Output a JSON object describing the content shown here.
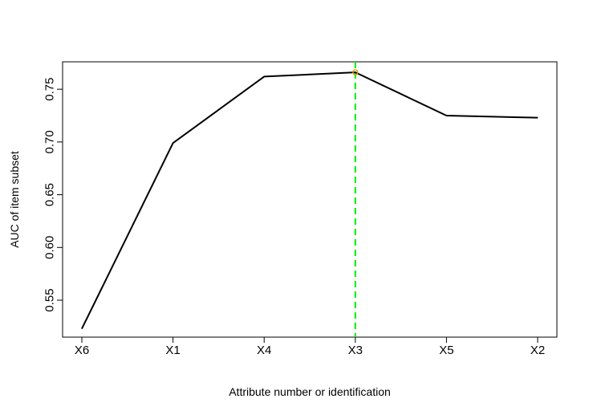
{
  "chart_data": {
    "type": "line",
    "title": "",
    "xlabel": "Attribute number or identification",
    "ylabel": "AUC of item subset",
    "categories": [
      "X6",
      "X1",
      "X4",
      "X3",
      "X5",
      "X2"
    ],
    "series": [
      {
        "values": [
          0.523,
          0.699,
          0.762,
          0.766,
          0.725,
          0.723
        ],
        "color": "#000000"
      }
    ],
    "yticks": [
      0.55,
      0.6,
      0.65,
      0.7,
      0.75
    ],
    "ytick_labels": [
      "0.55",
      "0.60",
      "0.65",
      "0.70",
      "0.75"
    ],
    "ylim": [
      0.515,
      0.776
    ],
    "highlight": {
      "category": "X3",
      "value": 0.766,
      "line_color": "#00ee00",
      "marker_color": "#d4a017",
      "line_style": "dashed"
    },
    "grid": false,
    "legend": "none"
  }
}
